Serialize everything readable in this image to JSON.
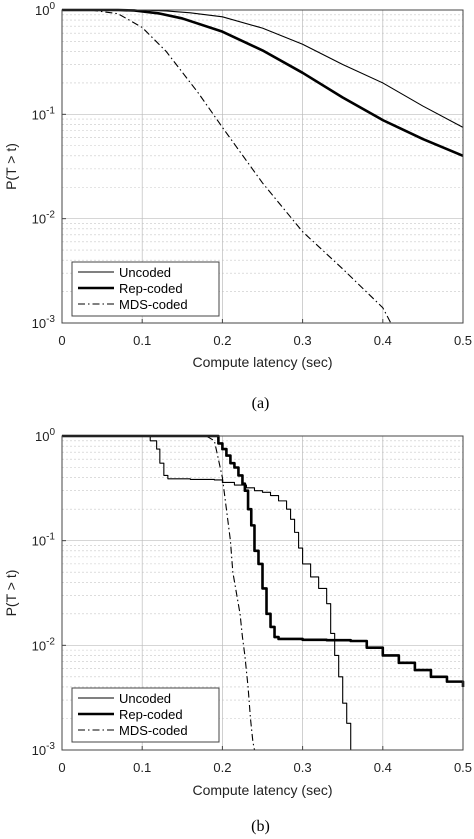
{
  "chart_data": [
    {
      "type": "line",
      "caption": "(a)",
      "xlabel": "Compute latency (sec)",
      "ylabel": "P(T > t)",
      "xlim": [
        0,
        0.5
      ],
      "ylim": [
        0.001,
        1
      ],
      "yscale": "log",
      "grid": true,
      "legend_position": "bottom-left",
      "xticks": [
        "0",
        "0.1",
        "0.2",
        "0.3",
        "0.4",
        "0.5"
      ],
      "yticks": [
        {
          "base": "10",
          "exp": "0"
        },
        {
          "base": "10",
          "exp": "-1"
        },
        {
          "base": "10",
          "exp": "-2"
        },
        {
          "base": "10",
          "exp": "-3"
        }
      ],
      "series": [
        {
          "name": "Uncoded",
          "style": "thin",
          "points": [
            [
              0,
              1
            ],
            [
              0.07,
              1
            ],
            [
              0.1,
              0.998
            ],
            [
              0.13,
              0.98
            ],
            [
              0.16,
              0.94
            ],
            [
              0.2,
              0.86
            ],
            [
              0.25,
              0.67
            ],
            [
              0.3,
              0.47
            ],
            [
              0.35,
              0.3
            ],
            [
              0.4,
              0.2
            ],
            [
              0.45,
              0.12
            ],
            [
              0.5,
              0.075
            ]
          ]
        },
        {
          "name": "Rep-coded",
          "style": "thick",
          "points": [
            [
              0,
              1
            ],
            [
              0.07,
              1
            ],
            [
              0.09,
              0.99
            ],
            [
              0.12,
              0.93
            ],
            [
              0.15,
              0.83
            ],
            [
              0.2,
              0.62
            ],
            [
              0.25,
              0.41
            ],
            [
              0.3,
              0.25
            ],
            [
              0.35,
              0.145
            ],
            [
              0.4,
              0.088
            ],
            [
              0.45,
              0.058
            ],
            [
              0.5,
              0.04
            ]
          ]
        },
        {
          "name": "MDS-coded",
          "style": "dashdot",
          "points": [
            [
              0,
              1
            ],
            [
              0.04,
              0.99
            ],
            [
              0.07,
              0.92
            ],
            [
              0.1,
              0.68
            ],
            [
              0.13,
              0.4
            ],
            [
              0.17,
              0.16
            ],
            [
              0.2,
              0.075
            ],
            [
              0.25,
              0.022
            ],
            [
              0.3,
              0.0075
            ],
            [
              0.35,
              0.0033
            ],
            [
              0.4,
              0.0014
            ],
            [
              0.41,
              0.001
            ]
          ]
        }
      ]
    },
    {
      "type": "line",
      "caption": "(b)",
      "xlabel": "Compute latency (sec)",
      "ylabel": "P(T > t)",
      "xlim": [
        0,
        0.5
      ],
      "ylim": [
        0.001,
        1
      ],
      "yscale": "log",
      "grid": true,
      "legend_position": "bottom-left",
      "xticks": [
        "0",
        "0.1",
        "0.2",
        "0.3",
        "0.4",
        "0.5"
      ],
      "yticks": [
        {
          "base": "10",
          "exp": "0"
        },
        {
          "base": "10",
          "exp": "-1"
        },
        {
          "base": "10",
          "exp": "-2"
        },
        {
          "base": "10",
          "exp": "-3"
        }
      ],
      "series": [
        {
          "name": "Uncoded",
          "style": "thin-step",
          "points": [
            [
              0,
              1
            ],
            [
              0.105,
              1
            ],
            [
              0.11,
              0.9
            ],
            [
              0.118,
              0.75
            ],
            [
              0.122,
              0.55
            ],
            [
              0.127,
              0.42
            ],
            [
              0.132,
              0.39
            ],
            [
              0.16,
              0.385
            ],
            [
              0.19,
              0.38
            ],
            [
              0.2,
              0.36
            ],
            [
              0.215,
              0.34
            ],
            [
              0.23,
              0.32
            ],
            [
              0.24,
              0.3
            ],
            [
              0.25,
              0.29
            ],
            [
              0.26,
              0.27
            ],
            [
              0.27,
              0.24
            ],
            [
              0.28,
              0.2
            ],
            [
              0.285,
              0.16
            ],
            [
              0.29,
              0.12
            ],
            [
              0.295,
              0.085
            ],
            [
              0.3,
              0.06
            ],
            [
              0.31,
              0.045
            ],
            [
              0.32,
              0.035
            ],
            [
              0.33,
              0.025
            ],
            [
              0.335,
              0.013
            ],
            [
              0.34,
              0.008
            ],
            [
              0.345,
              0.005
            ],
            [
              0.35,
              0.0028
            ],
            [
              0.355,
              0.0018
            ],
            [
              0.36,
              0.001
            ]
          ]
        },
        {
          "name": "Rep-coded",
          "style": "thick-step",
          "points": [
            [
              0,
              1
            ],
            [
              0.185,
              1
            ],
            [
              0.195,
              0.85
            ],
            [
              0.2,
              0.75
            ],
            [
              0.205,
              0.65
            ],
            [
              0.21,
              0.55
            ],
            [
              0.215,
              0.5
            ],
            [
              0.22,
              0.42
            ],
            [
              0.225,
              0.35
            ],
            [
              0.228,
              0.3
            ],
            [
              0.232,
              0.2
            ],
            [
              0.236,
              0.14
            ],
            [
              0.24,
              0.08
            ],
            [
              0.245,
              0.06
            ],
            [
              0.25,
              0.035
            ],
            [
              0.255,
              0.02
            ],
            [
              0.26,
              0.015
            ],
            [
              0.265,
              0.012
            ],
            [
              0.27,
              0.0115
            ],
            [
              0.3,
              0.0113
            ],
            [
              0.33,
              0.0112
            ],
            [
              0.36,
              0.011
            ],
            [
              0.38,
              0.0095
            ],
            [
              0.4,
              0.008
            ],
            [
              0.42,
              0.0068
            ],
            [
              0.44,
              0.0058
            ],
            [
              0.46,
              0.005
            ],
            [
              0.48,
              0.0045
            ],
            [
              0.5,
              0.004
            ]
          ]
        },
        {
          "name": "MDS-coded",
          "style": "dashdot",
          "points": [
            [
              0,
              1
            ],
            [
              0.18,
              1
            ],
            [
              0.19,
              0.9
            ],
            [
              0.195,
              0.6
            ],
            [
              0.2,
              0.4
            ],
            [
              0.205,
              0.2
            ],
            [
              0.21,
              0.1
            ],
            [
              0.213,
              0.05
            ],
            [
              0.218,
              0.03
            ],
            [
              0.222,
              0.02
            ],
            [
              0.225,
              0.012
            ],
            [
              0.228,
              0.008
            ],
            [
              0.232,
              0.004
            ],
            [
              0.235,
              0.002
            ],
            [
              0.238,
              0.0012
            ],
            [
              0.24,
              0.001
            ]
          ]
        }
      ]
    }
  ]
}
